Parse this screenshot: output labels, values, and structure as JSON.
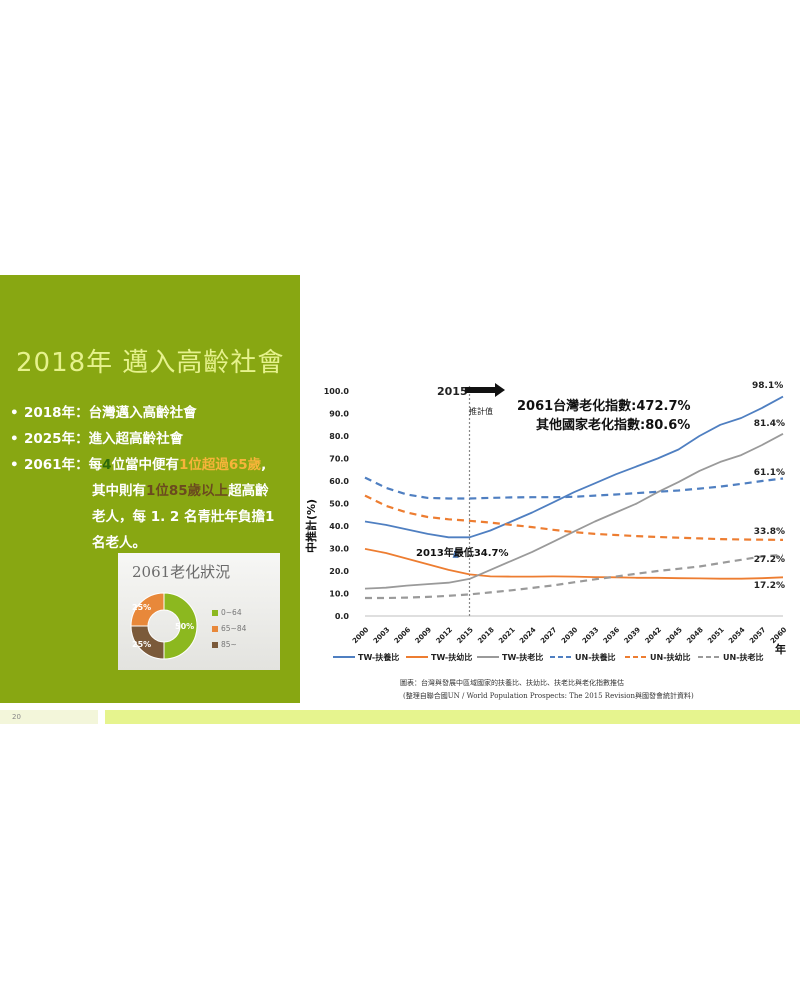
{
  "slide": {
    "title": "2018年 邁入高齡社會",
    "bullets": [
      {
        "year": "2018年：",
        "text": "台灣邁入高齡社會"
      },
      {
        "year": "2025年：",
        "text": "進入超高齡社會"
      },
      {
        "year": "2061年：",
        "parts": [
          "每",
          "4",
          "位當中便有",
          "1位超過65歲",
          ","
        ]
      }
    ],
    "continuation": {
      "line1": [
        "其中則有",
        "1位85歲以上",
        "超高齡"
      ],
      "line2": "老人，每 1. 2 名青壯年負擔1",
      "line3": "名老人。"
    },
    "page_number": "20"
  },
  "pie_card": {
    "title": "2061老化狀況",
    "legend": [
      "0~64",
      "65~84",
      "85~"
    ],
    "labels": [
      "25%",
      "50%",
      "25%"
    ],
    "colors": [
      "#8cb81f",
      "#e8883a",
      "#7b5a3a"
    ]
  },
  "chart_data": {
    "type": "line",
    "title": "",
    "xlabel": "年",
    "ylabel": "中推計(%)",
    "ylim": [
      0,
      100
    ],
    "yticks": [
      "0.0",
      "10.0",
      "20.0",
      "30.0",
      "40.0",
      "50.0",
      "60.0",
      "70.0",
      "80.0",
      "90.0",
      "100.0"
    ],
    "x": [
      2000,
      2003,
      2006,
      2009,
      2012,
      2015,
      2018,
      2021,
      2024,
      2027,
      2030,
      2033,
      2036,
      2039,
      2042,
      2045,
      2048,
      2051,
      2054,
      2057,
      2060
    ],
    "series": [
      {
        "name": "TW-扶養比",
        "color": "#4f7fc1",
        "dash": false,
        "values": [
          42,
          40.5,
          38.5,
          36.5,
          35,
          35,
          38,
          42,
          46,
          50.5,
          55,
          59,
          63,
          66.5,
          70,
          74,
          80,
          85,
          88,
          92.5,
          97.5
        ]
      },
      {
        "name": "TW-扶幼比",
        "color": "#ed7d31",
        "dash": false,
        "values": [
          29.8,
          28,
          25.5,
          23,
          20.5,
          18.5,
          17.6,
          17.5,
          17.5,
          17.6,
          17.5,
          17.3,
          17.2,
          17,
          17,
          16.8,
          16.7,
          16.6,
          16.6,
          16.8,
          17.2
        ]
      },
      {
        "name": "TW-扶老比",
        "color": "#9a9a9a",
        "dash": false,
        "values": [
          12.2,
          12.6,
          13.5,
          14.2,
          14.8,
          16.5,
          20.5,
          24.5,
          28.5,
          33,
          37.5,
          42,
          46,
          50,
          55,
          59.5,
          64.5,
          68.5,
          71.5,
          76,
          81
        ]
      },
      {
        "name": "UN-扶養比",
        "color": "#4f7fc1",
        "dash": true,
        "values": [
          61.5,
          57,
          54,
          52.5,
          52.2,
          52.2,
          52.5,
          52.7,
          52.8,
          52.8,
          53,
          53.5,
          54,
          54.6,
          55.2,
          55.8,
          56.6,
          57.5,
          58.7,
          60,
          61.1
        ]
      },
      {
        "name": "UN-扶幼比",
        "color": "#ed7d31",
        "dash": true,
        "values": [
          53.5,
          49,
          46,
          44,
          43,
          42.3,
          41.5,
          40.5,
          39.5,
          38.3,
          37.3,
          36.5,
          36,
          35.5,
          35.1,
          34.8,
          34.5,
          34.2,
          34,
          33.9,
          33.8
        ]
      },
      {
        "name": "UN-扶老比",
        "color": "#9a9a9a",
        "dash": true,
        "values": [
          8,
          8,
          8.2,
          8.5,
          9,
          9.6,
          10.5,
          11.4,
          12.5,
          13.6,
          15,
          16.3,
          17.5,
          18.8,
          20,
          21,
          22,
          23.5,
          25,
          26.5,
          27.2
        ]
      }
    ],
    "end_labels": [
      "98.1%",
      "81.4%",
      "61.1%",
      "33.8%",
      "27.2%",
      "17.2%"
    ],
    "annotations": {
      "marker_year": "2015",
      "projection_label": "推計值",
      "tw_index": "2061台灣老化指數:472.7%",
      "other_index": "其他國家老化指數:80.6%",
      "min_label": "2013年最低34.7%"
    },
    "caption1": "圖表：台灣與發展中區域國家的扶養比、扶幼比、扶老比與老化指數推估",
    "caption2": "(整理自聯合國UN / World Population Prospects: The 2015 Revision與國發會統計資料)",
    "grid": false,
    "legend_position": "bottom"
  }
}
